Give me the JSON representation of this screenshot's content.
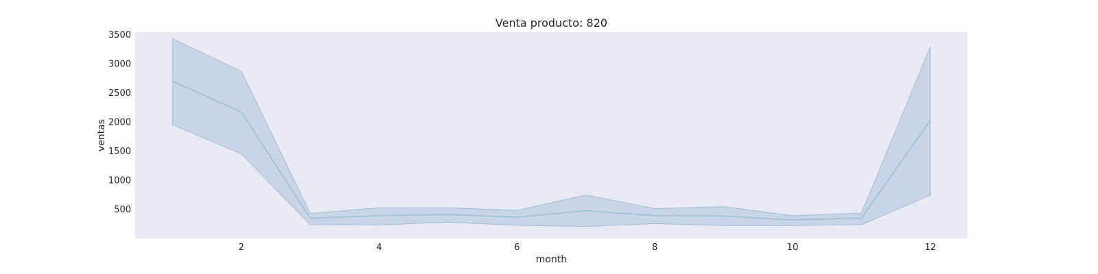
{
  "chart_data": {
    "type": "line",
    "title": "Venta producto: 820",
    "xlabel": "month",
    "ylabel": "ventas",
    "xlim": [
      0.46,
      12.54
    ],
    "ylim": [
      0,
      3540
    ],
    "x_ticks": [
      2,
      4,
      6,
      8,
      10,
      12
    ],
    "y_ticks": [
      500,
      1000,
      1500,
      2000,
      2500,
      3000,
      3500
    ],
    "grid": false,
    "x": [
      1,
      2,
      3,
      4,
      5,
      6,
      7,
      8,
      9,
      10,
      11,
      12
    ],
    "series": [
      {
        "values": [
          2700,
          2170,
          345,
          390,
          410,
          365,
          475,
          390,
          385,
          315,
          350,
          2030
        ],
        "ci_lower": [
          1950,
          1450,
          235,
          230,
          280,
          225,
          205,
          255,
          220,
          220,
          235,
          740
        ],
        "ci_upper": [
          3430,
          2870,
          430,
          525,
          525,
          480,
          745,
          510,
          545,
          390,
          435,
          3290
        ],
        "color": "#9ebcda"
      }
    ],
    "background": "#eaeaf2"
  }
}
